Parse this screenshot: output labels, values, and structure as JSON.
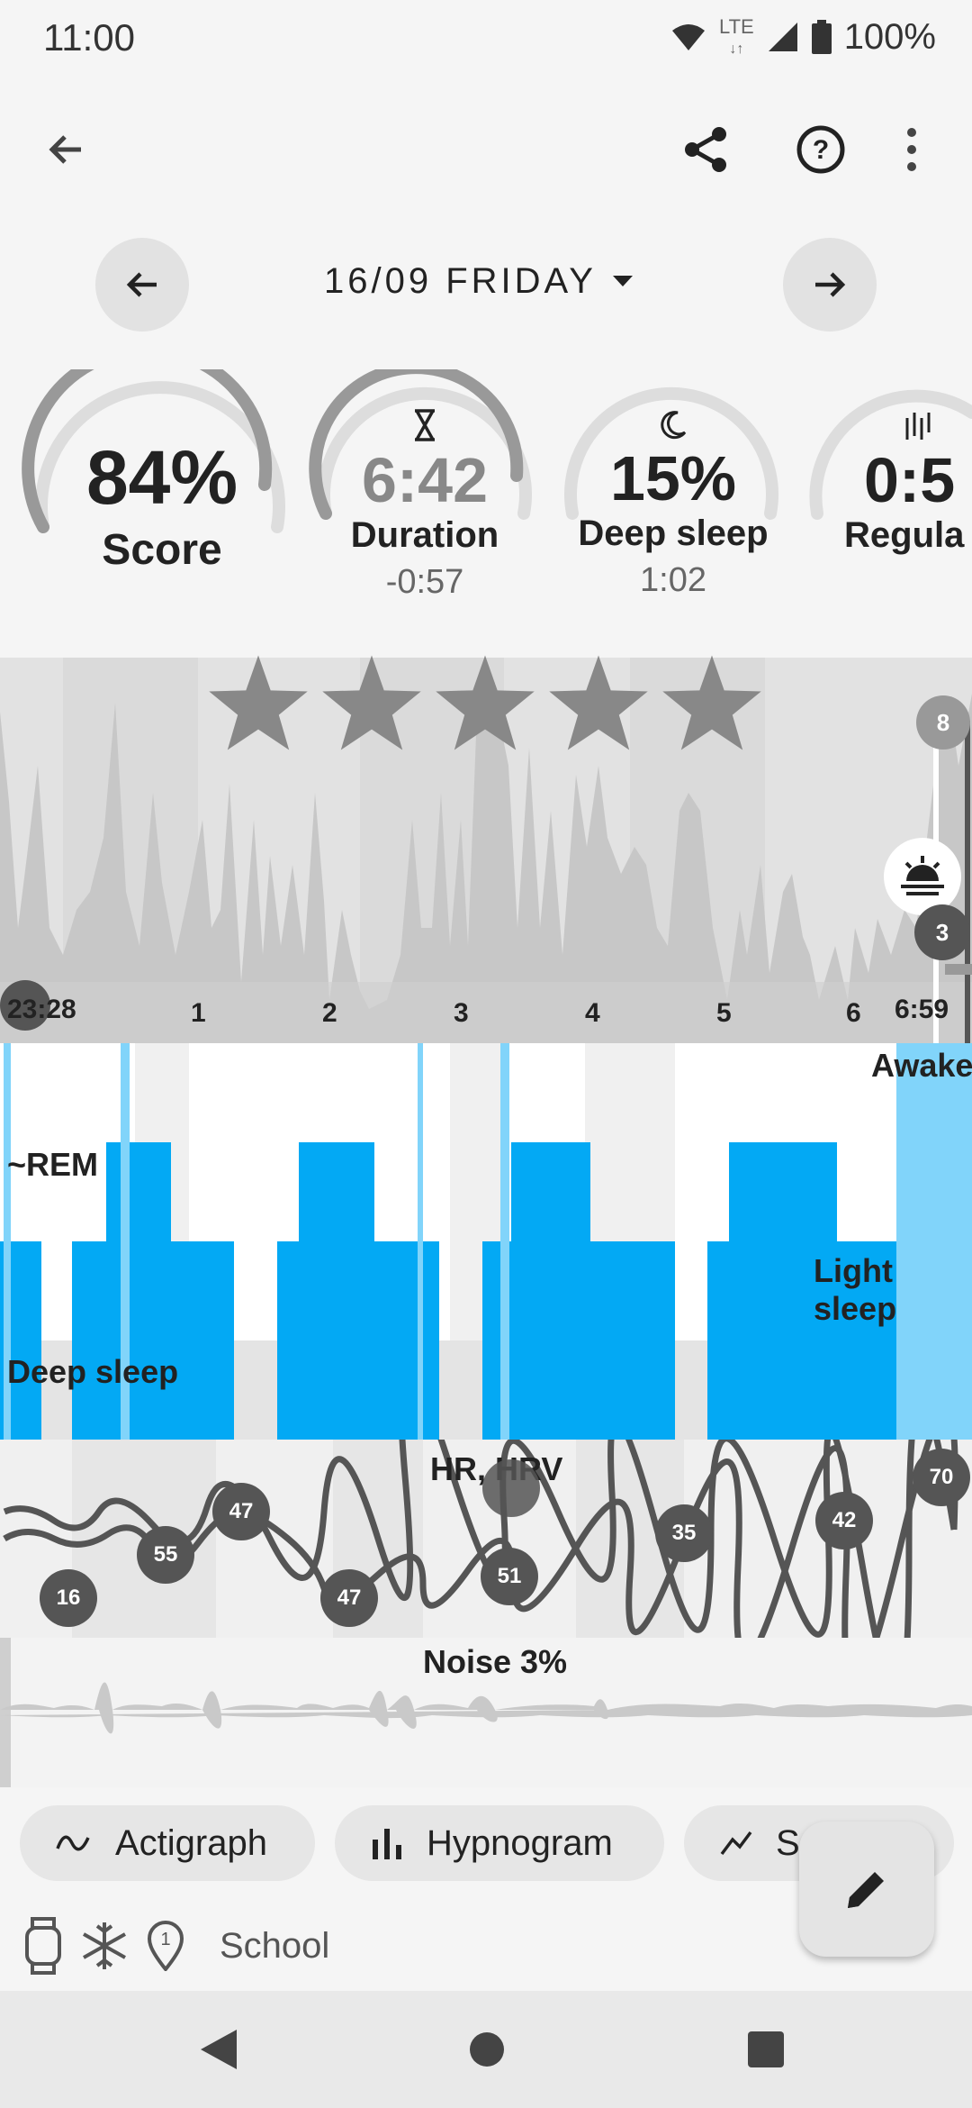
{
  "status": {
    "time": "11:00",
    "network": "LTE",
    "battery": "100%"
  },
  "date": {
    "label": "16/09 FRIDAY"
  },
  "gauges": [
    {
      "value": "84%",
      "label": "Score",
      "sub": "",
      "level": 0.84
    },
    {
      "value": "6:42",
      "label": "Duration",
      "sub": "-0:57",
      "icon": "hourglass-icon",
      "level": 0.9
    },
    {
      "value": "15%",
      "label": "Deep sleep",
      "sub": "1:02",
      "icon": "moon-icon",
      "level": 0.15
    },
    {
      "value": "0:5",
      "label": "Regula",
      "sub": "",
      "icon": "regularity-icon",
      "level": 0.4
    }
  ],
  "rating": {
    "stars": 5,
    "filled": 5
  },
  "actigraph": {
    "start": "23:28",
    "end": "6:59",
    "ticks": [
      "1",
      "2",
      "3",
      "4",
      "5",
      "6"
    ],
    "markers": [
      "8",
      "3"
    ]
  },
  "hypnogram": {
    "labels": {
      "awake": "Awake",
      "rem": "~REM",
      "light": "Light sleep",
      "deep": "Deep sleep"
    }
  },
  "hr": {
    "title": "HR, HRV",
    "values": [
      "16",
      "55",
      "47",
      "47",
      "51",
      "35",
      "42",
      "70"
    ]
  },
  "noise": {
    "title": "Noise 3%"
  },
  "chips": [
    {
      "label": "Actigraph",
      "icon": "wave-icon"
    },
    {
      "label": "Hypnogram",
      "icon": "bars-icon"
    },
    {
      "label": "S",
      "icon": "trend-icon"
    }
  ],
  "tags": {
    "text": "School",
    "icons": [
      "watch-icon",
      "snowflake-icon",
      "location-pin-icon"
    ]
  },
  "colors": {
    "deep_blue": "#03a9f4",
    "light_blue": "#81d4fa",
    "gray_chart": "#c7c7c7",
    "marker": "#555555"
  }
}
